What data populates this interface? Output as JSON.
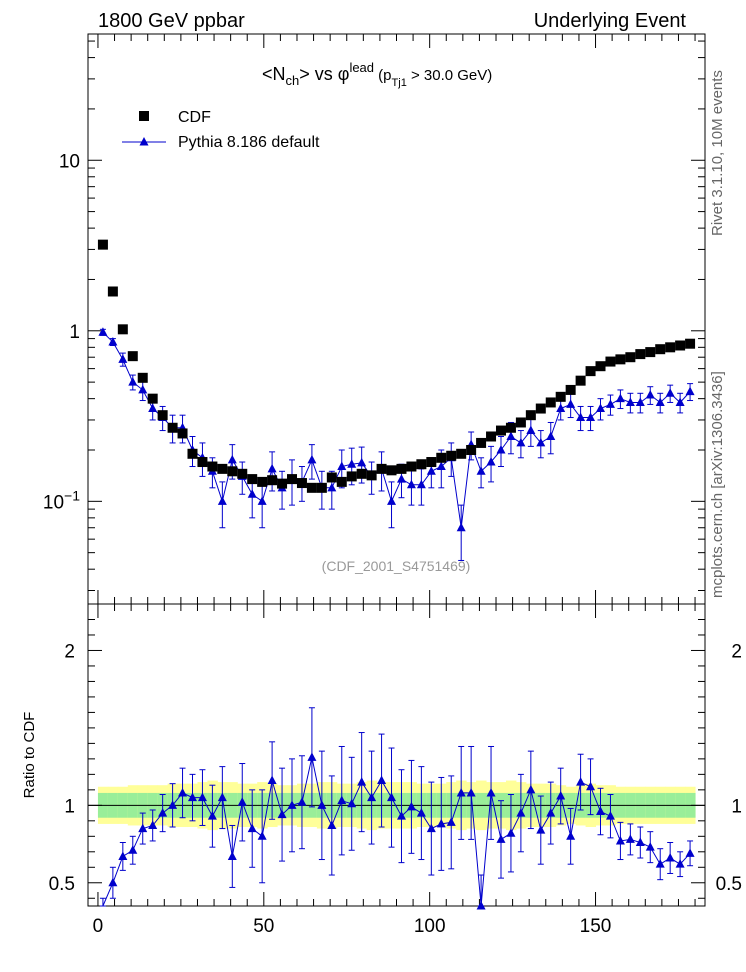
{
  "header": {
    "left": "1800 GeV ppbar",
    "right": "Underlying Event"
  },
  "side_labels": {
    "rivet": "Rivet 3.1.10, 10M events",
    "mcplots": "mcplots.cern.ch [arXiv:1306.3436]"
  },
  "annotation": "(CDF_2001_S4751469)",
  "legend": {
    "data_label": "CDF",
    "mc_label": "Pythia 8.186 default"
  },
  "colors": {
    "mc": "#0000cc",
    "data": "#000000",
    "band_inner": "#99ee99",
    "band_outer": "#ffff99"
  },
  "chart_data": [
    {
      "type": "scatter",
      "title_parts": {
        "a": "<N",
        "a_sub": "ch",
        "b": "> vs ",
        "phi": "φ",
        "phi_sup": "lead",
        "c": " (p",
        "c_sub": "Tj1",
        "d": " > 30.0 GeV)"
      },
      "y_scale": "log",
      "ylim": [
        0.025,
        55
      ],
      "xlim": [
        -3,
        183
      ],
      "y_ticks": [
        {
          "label_base": "10",
          "label_exp": "−1"
        },
        {
          "label": "1"
        },
        {
          "label": "10"
        }
      ],
      "y_tick_values": [
        0.1,
        1,
        10
      ],
      "x": [
        1.5,
        4.5,
        7.5,
        10.5,
        13.5,
        16.5,
        19.5,
        22.5,
        25.5,
        28.5,
        31.5,
        34.5,
        37.5,
        40.5,
        43.5,
        46.5,
        49.5,
        52.5,
        55.5,
        58.5,
        61.5,
        64.5,
        67.5,
        70.5,
        73.5,
        76.5,
        79.5,
        82.5,
        85.5,
        88.5,
        91.5,
        94.5,
        97.5,
        100.5,
        103.5,
        106.5,
        109.5,
        112.5,
        115.5,
        118.5,
        121.5,
        124.5,
        127.5,
        130.5,
        133.5,
        136.5,
        139.5,
        142.5,
        145.5,
        148.5,
        151.5,
        154.5,
        157.5,
        160.5,
        163.5,
        166.5,
        169.5,
        172.5,
        175.5,
        178.5
      ],
      "series": [
        {
          "name": "CDF",
          "marker": "square",
          "values": [
            3.2,
            1.7,
            1.02,
            0.71,
            0.53,
            0.4,
            0.32,
            0.27,
            0.25,
            0.19,
            0.17,
            0.16,
            0.155,
            0.15,
            0.145,
            0.135,
            0.13,
            0.133,
            0.127,
            0.135,
            0.128,
            0.12,
            0.12,
            0.138,
            0.13,
            0.14,
            0.145,
            0.142,
            0.155,
            0.152,
            0.155,
            0.16,
            0.165,
            0.17,
            0.18,
            0.185,
            0.19,
            0.2,
            0.22,
            0.24,
            0.26,
            0.27,
            0.29,
            0.32,
            0.35,
            0.38,
            0.41,
            0.45,
            0.51,
            0.58,
            0.62,
            0.66,
            0.68,
            0.7,
            0.73,
            0.75,
            0.78,
            0.8,
            0.82,
            0.84
          ]
        },
        {
          "name": "Pythia 8.186 default",
          "marker": "triangle",
          "values": [
            0.98,
            0.86,
            0.68,
            0.5,
            0.45,
            0.35,
            0.31,
            0.27,
            0.27,
            0.2,
            0.18,
            0.15,
            0.1,
            0.175,
            0.14,
            0.11,
            0.1,
            0.155,
            0.12,
            0.135,
            0.13,
            0.175,
            0.12,
            0.12,
            0.16,
            0.165,
            0.168,
            0.14,
            0.155,
            0.1,
            0.135,
            0.125,
            0.125,
            0.15,
            0.16,
            0.18,
            0.07,
            0.215,
            0.15,
            0.17,
            0.2,
            0.24,
            0.22,
            0.26,
            0.22,
            0.24,
            0.35,
            0.37,
            0.31,
            0.31,
            0.35,
            0.37,
            0.4,
            0.38,
            0.38,
            0.42,
            0.38,
            0.43,
            0.38,
            0.44
          ]
        }
      ],
      "mc_errors": [
        0.04,
        0.04,
        0.06,
        0.05,
        0.06,
        0.05,
        0.05,
        0.05,
        0.05,
        0.04,
        0.04,
        0.03,
        0.03,
        0.04,
        0.03,
        0.03,
        0.03,
        0.04,
        0.03,
        0.04,
        0.03,
        0.04,
        0.03,
        0.03,
        0.04,
        0.04,
        0.04,
        0.03,
        0.04,
        0.03,
        0.03,
        0.03,
        0.03,
        0.03,
        0.04,
        0.04,
        0.025,
        0.04,
        0.03,
        0.04,
        0.04,
        0.05,
        0.04,
        0.05,
        0.04,
        0.05,
        0.05,
        0.06,
        0.05,
        0.05,
        0.05,
        0.05,
        0.05,
        0.05,
        0.05,
        0.05,
        0.05,
        0.05,
        0.05,
        0.05
      ]
    },
    {
      "type": "scatter",
      "ylabel": "Ratio to CDF",
      "y_scale": "linear",
      "ylim": [
        0.35,
        2.3
      ],
      "xlim": [
        -3,
        183
      ],
      "y_tick_values": [
        0.5,
        1,
        2
      ],
      "y_tick_labels": [
        "0.5",
        "1",
        "2"
      ],
      "x_tick_values": [
        0,
        50,
        100,
        150
      ],
      "x_tick_labels": [
        "0",
        "50",
        "100",
        "150"
      ],
      "band_inner_halfwidth": 0.08,
      "band_outer_halfwidth": [
        0.12,
        0.12,
        0.12,
        0.13,
        0.13,
        0.13,
        0.13,
        0.14,
        0.14,
        0.14,
        0.15,
        0.16,
        0.15,
        0.15,
        0.14,
        0.14,
        0.15,
        0.14,
        0.13,
        0.13,
        0.14,
        0.14,
        0.15,
        0.15,
        0.14,
        0.14,
        0.15,
        0.16,
        0.15,
        0.15,
        0.15,
        0.15,
        0.14,
        0.14,
        0.14,
        0.15,
        0.16,
        0.15,
        0.16,
        0.15,
        0.15,
        0.16,
        0.15,
        0.14,
        0.14,
        0.14,
        0.13,
        0.12,
        0.13,
        0.14,
        0.13,
        0.13,
        0.12,
        0.12,
        0.12,
        0.12,
        0.12,
        0.12,
        0.12,
        0.12
      ],
      "series": [
        {
          "name": "Pythia 8.186 default",
          "values": [
            0.3,
            0.5,
            0.67,
            0.71,
            0.85,
            0.87,
            0.95,
            1.0,
            1.08,
            1.05,
            1.05,
            0.93,
            1.05,
            0.67,
            1.02,
            0.85,
            0.8,
            1.16,
            0.94,
            1.0,
            1.02,
            1.31,
            1.0,
            0.87,
            1.03,
            1.01,
            1.15,
            1.05,
            1.16,
            1.05,
            0.93,
            0.99,
            0.95,
            0.85,
            0.88,
            0.89,
            1.08,
            1.08,
            0.35,
            1.08,
            0.78,
            0.82,
            0.95,
            1.1,
            0.84,
            0.95,
            1.06,
            0.8,
            1.15,
            1.12,
            0.96,
            0.93,
            0.77,
            0.78,
            0.76,
            0.73,
            0.62,
            0.66,
            0.62,
            0.69
          ],
          "errors": [
            0.1,
            0.1,
            0.09,
            0.09,
            0.1,
            0.1,
            0.12,
            0.14,
            0.16,
            0.15,
            0.18,
            0.2,
            0.2,
            0.2,
            0.25,
            0.25,
            0.3,
            0.25,
            0.3,
            0.3,
            0.3,
            0.32,
            0.35,
            0.32,
            0.35,
            0.3,
            0.32,
            0.3,
            0.3,
            0.32,
            0.3,
            0.3,
            0.3,
            0.3,
            0.3,
            0.3,
            0.3,
            0.3,
            0.2,
            0.3,
            0.25,
            0.25,
            0.25,
            0.25,
            0.22,
            0.2,
            0.18,
            0.18,
            0.18,
            0.18,
            0.15,
            0.14,
            0.12,
            0.1,
            0.1,
            0.1,
            0.1,
            0.1,
            0.08,
            0.08
          ]
        }
      ]
    }
  ]
}
